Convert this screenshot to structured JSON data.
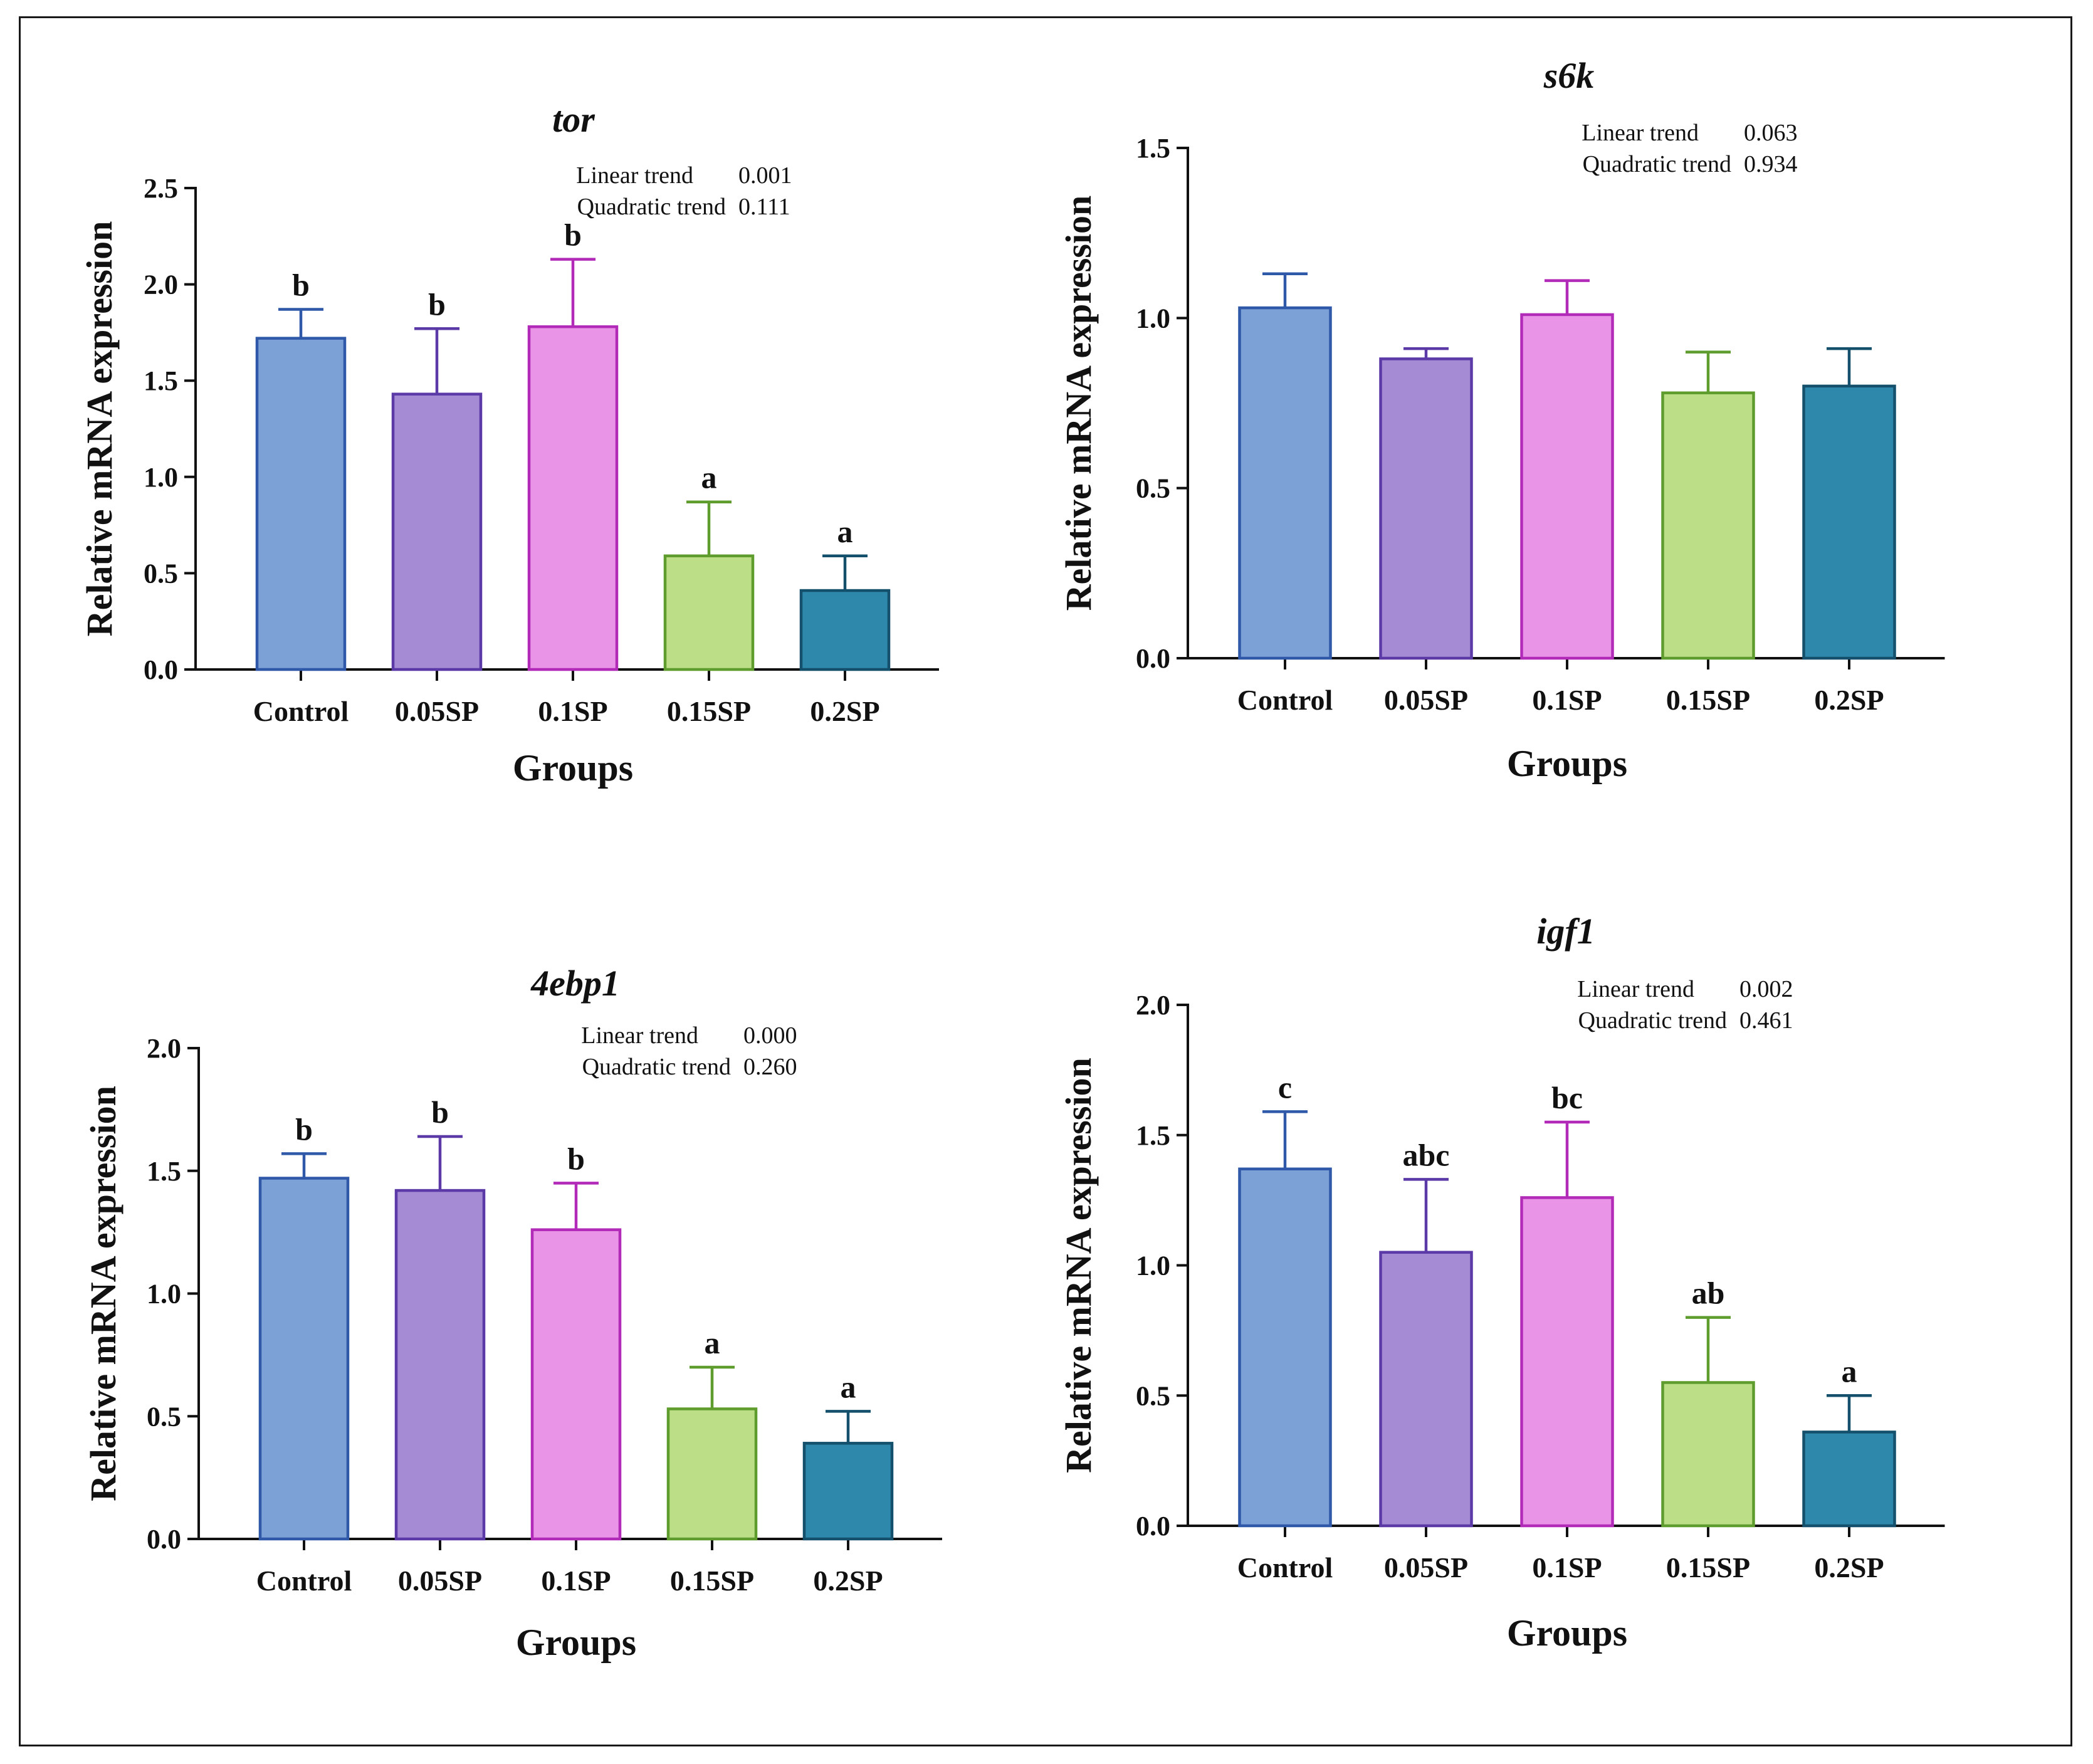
{
  "chart_data": [
    {
      "type": "bar",
      "title": "tor",
      "xlabel": "Groups",
      "ylabel": "Relative mRNA expression",
      "categories": [
        "Control",
        "0.05SP",
        "0.1SP",
        "0.15SP",
        "0.2SP"
      ],
      "values": [
        1.72,
        1.43,
        1.78,
        0.59,
        0.41
      ],
      "errors": [
        0.15,
        0.34,
        0.35,
        0.28,
        0.18
      ],
      "significance": [
        "b",
        "b",
        "b",
        "a",
        "a"
      ],
      "ylim": [
        0,
        2.5
      ],
      "yticks": [
        "0.0",
        "0.5",
        "1.0",
        "1.5",
        "2.0",
        "2.5"
      ],
      "trend": {
        "linear_label": "Linear trend",
        "linear_value": "0.001",
        "quadratic_label": "Quadratic trend",
        "quadratic_value": "0.111"
      }
    },
    {
      "type": "bar",
      "title": "s6k",
      "xlabel": "Groups",
      "ylabel": "Relative mRNA expression",
      "categories": [
        "Control",
        "0.05SP",
        "0.1SP",
        "0.15SP",
        "0.2SP"
      ],
      "values": [
        1.03,
        0.88,
        1.01,
        0.78,
        0.8
      ],
      "errors": [
        0.1,
        0.03,
        0.1,
        0.12,
        0.11
      ],
      "significance": [
        "",
        "",
        "",
        "",
        ""
      ],
      "ylim": [
        0,
        1.5
      ],
      "yticks": [
        "0.0",
        "0.5",
        "1.0",
        "1.5"
      ],
      "trend": {
        "linear_label": "Linear trend",
        "linear_value": "0.063",
        "quadratic_label": "Quadratic trend",
        "quadratic_value": "0.934"
      }
    },
    {
      "type": "bar",
      "title": "4ebp1",
      "xlabel": "Groups",
      "ylabel": "Relative mRNA expression",
      "categories": [
        "Control",
        "0.05SP",
        "0.1SP",
        "0.15SP",
        "0.2SP"
      ],
      "values": [
        1.47,
        1.42,
        1.26,
        0.53,
        0.39
      ],
      "errors": [
        0.1,
        0.22,
        0.19,
        0.17,
        0.13
      ],
      "significance": [
        "b",
        "b",
        "b",
        "a",
        "a"
      ],
      "ylim": [
        0,
        2.0
      ],
      "yticks": [
        "0.0",
        "0.5",
        "1.0",
        "1.5",
        "2.0"
      ],
      "trend": {
        "linear_label": "Linear trend",
        "linear_value": "0.000",
        "quadratic_label": "Quadratic trend",
        "quadratic_value": "0.260"
      }
    },
    {
      "type": "bar",
      "title": "igf1",
      "xlabel": "Groups",
      "ylabel": "Relative mRNA expression",
      "categories": [
        "Control",
        "0.05SP",
        "0.1SP",
        "0.15SP",
        "0.2SP"
      ],
      "values": [
        1.37,
        1.05,
        1.26,
        0.55,
        0.36
      ],
      "errors": [
        0.22,
        0.28,
        0.29,
        0.25,
        0.14
      ],
      "significance": [
        "c",
        "abc",
        "bc",
        "ab",
        "a"
      ],
      "ylim": [
        0,
        2.0
      ],
      "yticks": [
        "0.0",
        "0.5",
        "1.0",
        "1.5",
        "2.0"
      ],
      "trend": {
        "linear_label": "Linear trend",
        "linear_value": "0.002",
        "quadratic_label": "Quadratic trend",
        "quadratic_value": "0.461"
      }
    }
  ],
  "colors": {
    "bar_fills": [
      "#7ba1d6",
      "#a58bd4",
      "#ea94e8",
      "#bbde87",
      "#2e88ab"
    ],
    "bar_strokes": [
      "#2f59a8",
      "#5b3aa8",
      "#b22ab8",
      "#5e9c2e",
      "#14506c"
    ]
  }
}
